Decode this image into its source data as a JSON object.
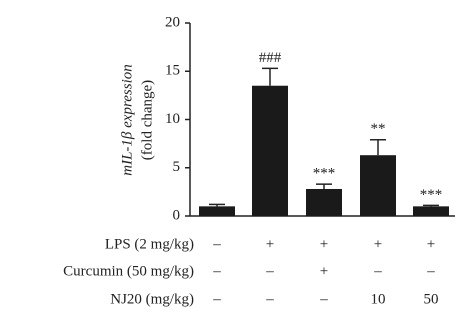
{
  "chart_data": {
    "type": "bar",
    "ylabel": [
      "mIL-1β expression",
      "(fold change)"
    ],
    "series": [
      {
        "color": "#1a1a1a",
        "values": [
          1.0,
          13.5,
          2.8,
          6.3,
          1.0
        ],
        "errors": [
          0.2,
          1.8,
          0.5,
          1.6,
          0.1
        ]
      }
    ],
    "annotations": [
      null,
      "###",
      "***",
      "**",
      "***"
    ],
    "ylim": [
      0,
      20
    ],
    "yticks": [
      0,
      5,
      10,
      15,
      20
    ],
    "grid": false
  },
  "treatment_table": {
    "rows": [
      {
        "label": "LPS (2 mg/kg)",
        "cells": [
          "–",
          "+",
          "+",
          "+",
          "+"
        ]
      },
      {
        "label": "Curcumin (50 mg/kg)",
        "cells": [
          "–",
          "–",
          "+",
          "–",
          "–"
        ]
      },
      {
        "label": "NJ20 (mg/kg)",
        "cells": [
          "–",
          "–",
          "–",
          "10",
          "50"
        ]
      }
    ]
  }
}
